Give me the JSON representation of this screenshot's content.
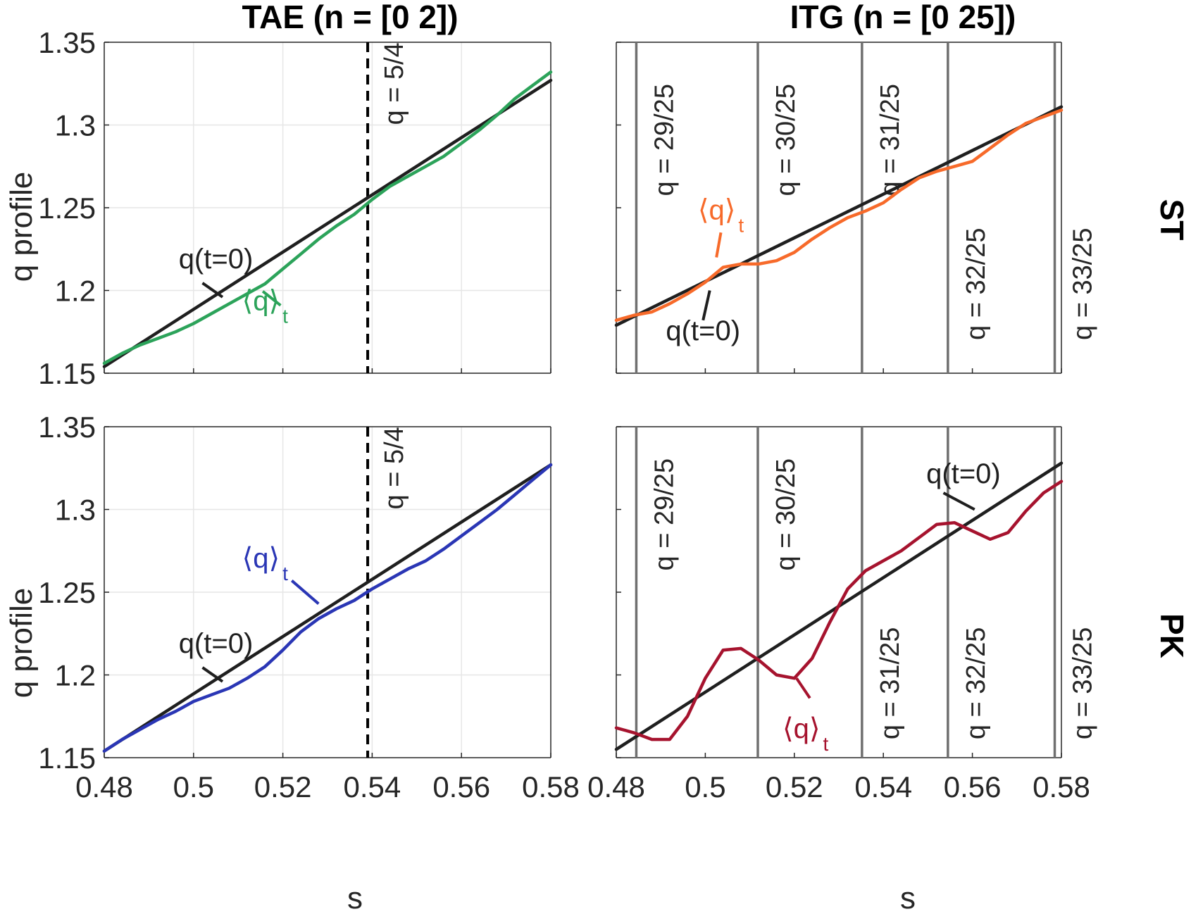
{
  "titles": {
    "left": "TAE (n = [0 2])",
    "right": "ITG (n = [0 25])"
  },
  "row_labels": {
    "top": "ST",
    "bottom": "PK"
  },
  "axis_labels": {
    "x": "s",
    "y": "q profile"
  },
  "x_ticks": [
    "0.48",
    "0.5",
    "0.52",
    "0.54",
    "0.56",
    "0.58"
  ],
  "y_ticks": [
    "1.15",
    "1.2",
    "1.25",
    "1.3",
    "1.35"
  ],
  "annotations": {
    "q0": "q(t=0)",
    "qt": "⟨q⟩",
    "qt_sub": "t"
  },
  "colors": {
    "tae_st": "#2ca35a",
    "tae_pk": "#2a36b5",
    "itg_st": "#f76a2a",
    "itg_pk": "#a6132e",
    "q0": "#1f1f1f",
    "rational": "#707070"
  },
  "chart_data": [
    {
      "id": "tae_st",
      "type": "line",
      "title": "TAE (n = [0 2])",
      "row": "ST",
      "xlabel": "",
      "ylabel": "q profile",
      "xlim": [
        0.48,
        0.58
      ],
      "ylim": [
        1.15,
        1.35
      ],
      "grid": true,
      "series": [
        {
          "name": "q(t=0)",
          "color": "#1f1f1f",
          "x": [
            0.48,
            0.58
          ],
          "y": [
            1.154,
            1.327
          ]
        },
        {
          "name": "⟨q⟩t",
          "color": "#2ca35a",
          "x": [
            0.48,
            0.484,
            0.488,
            0.492,
            0.496,
            0.5,
            0.504,
            0.508,
            0.512,
            0.516,
            0.52,
            0.524,
            0.528,
            0.532,
            0.536,
            0.54,
            0.544,
            0.548,
            0.552,
            0.556,
            0.56,
            0.564,
            0.568,
            0.572,
            0.576,
            0.58
          ],
          "y": [
            1.156,
            1.162,
            1.167,
            1.171,
            1.175,
            1.18,
            1.186,
            1.192,
            1.198,
            1.204,
            1.213,
            1.222,
            1.231,
            1.239,
            1.246,
            1.255,
            1.263,
            1.269,
            1.275,
            1.281,
            1.289,
            1.297,
            1.306,
            1.316,
            1.324,
            1.332
          ]
        }
      ],
      "vlines": [
        {
          "x": 0.539,
          "label": "q = 5/4",
          "style": "dashed"
        }
      ],
      "labels": [
        {
          "series": "q(t=0)",
          "at": [
            0.505,
            1.2134
          ]
        },
        {
          "series": "⟨q⟩t",
          "at": [
            0.516,
            1.188
          ]
        }
      ]
    },
    {
      "id": "itg_st",
      "type": "line",
      "title": "ITG (n = [0 25])",
      "row": "ST",
      "xlabel": "",
      "ylabel": "",
      "xlim": [
        0.48,
        0.58
      ],
      "ylim": [
        1.15,
        1.35
      ],
      "grid": false,
      "series": [
        {
          "name": "q(t=0)",
          "color": "#1f1f1f",
          "x": [
            0.48,
            0.58
          ],
          "y": [
            1.179,
            1.311
          ]
        },
        {
          "name": "⟨q⟩t",
          "color": "#f76a2a",
          "x": [
            0.48,
            0.484,
            0.488,
            0.492,
            0.496,
            0.5,
            0.504,
            0.508,
            0.512,
            0.516,
            0.52,
            0.524,
            0.528,
            0.532,
            0.536,
            0.54,
            0.544,
            0.548,
            0.552,
            0.556,
            0.56,
            0.564,
            0.568,
            0.572,
            0.576,
            0.58
          ],
          "y": [
            1.182,
            1.185,
            1.187,
            1.192,
            1.198,
            1.205,
            1.214,
            1.216,
            1.216,
            1.218,
            1.223,
            1.231,
            1.238,
            1.244,
            1.248,
            1.253,
            1.261,
            1.268,
            1.272,
            1.275,
            1.278,
            1.286,
            1.294,
            1.301,
            1.305,
            1.309
          ]
        }
      ],
      "vlines": [
        {
          "x": 0.4845,
          "label": "q = 29/25",
          "label_y": 1.257
        },
        {
          "x": 0.5118,
          "label": "q = 30/25",
          "label_y": 1.257
        },
        {
          "x": 0.5352,
          "label": "q = 31/25",
          "label_y": 1.257
        },
        {
          "x": 0.5545,
          "label": "q = 32/25",
          "label_y": 1.17
        },
        {
          "x": 0.5785,
          "label": "q = 33/25",
          "label_y": 1.17
        }
      ],
      "labels": [
        {
          "series": "⟨q⟩t",
          "at": [
            0.5035,
            1.243
          ]
        },
        {
          "series": "q(t=0)",
          "at": [
            0.4995,
            1.17
          ]
        }
      ]
    },
    {
      "id": "tae_pk",
      "type": "line",
      "title": "",
      "row": "PK",
      "xlabel": "s",
      "ylabel": "q profile",
      "xlim": [
        0.48,
        0.58
      ],
      "ylim": [
        1.15,
        1.35
      ],
      "grid": true,
      "series": [
        {
          "name": "q(t=0)",
          "color": "#1f1f1f",
          "x": [
            0.48,
            0.58
          ],
          "y": [
            1.154,
            1.327
          ]
        },
        {
          "name": "⟨q⟩t",
          "color": "#2a36b5",
          "x": [
            0.48,
            0.484,
            0.488,
            0.492,
            0.496,
            0.5,
            0.504,
            0.508,
            0.512,
            0.516,
            0.52,
            0.524,
            0.528,
            0.532,
            0.536,
            0.54,
            0.544,
            0.548,
            0.552,
            0.556,
            0.56,
            0.564,
            0.568,
            0.572,
            0.576,
            0.58
          ],
          "y": [
            1.154,
            1.161,
            1.167,
            1.173,
            1.178,
            1.184,
            1.188,
            1.192,
            1.198,
            1.205,
            1.215,
            1.226,
            1.234,
            1.24,
            1.245,
            1.252,
            1.258,
            1.264,
            1.269,
            1.276,
            1.284,
            1.292,
            1.3,
            1.309,
            1.318,
            1.327
          ]
        }
      ],
      "vlines": [
        {
          "x": 0.539,
          "label": "q = 5/4",
          "style": "dashed"
        }
      ],
      "labels": [
        {
          "series": "q(t=0)",
          "at": [
            0.505,
            1.2134
          ]
        },
        {
          "series": "⟨q⟩t",
          "at": [
            0.516,
            1.265
          ]
        }
      ]
    },
    {
      "id": "itg_pk",
      "type": "line",
      "title": "",
      "row": "PK",
      "xlabel": "s",
      "ylabel": "",
      "xlim": [
        0.48,
        0.58
      ],
      "ylim": [
        1.15,
        1.35
      ],
      "grid": false,
      "series": [
        {
          "name": "q(t=0)",
          "color": "#1f1f1f",
          "x": [
            0.48,
            0.58
          ],
          "y": [
            1.155,
            1.328
          ]
        },
        {
          "name": "⟨q⟩t",
          "color": "#a6132e",
          "x": [
            0.48,
            0.484,
            0.488,
            0.492,
            0.496,
            0.5,
            0.504,
            0.508,
            0.512,
            0.516,
            0.52,
            0.524,
            0.528,
            0.532,
            0.536,
            0.54,
            0.544,
            0.548,
            0.552,
            0.556,
            0.56,
            0.564,
            0.568,
            0.572,
            0.576,
            0.58
          ],
          "y": [
            1.168,
            1.165,
            1.161,
            1.161,
            1.175,
            1.198,
            1.215,
            1.216,
            1.209,
            1.2,
            1.198,
            1.21,
            1.232,
            1.252,
            1.263,
            1.269,
            1.275,
            1.283,
            1.291,
            1.292,
            1.287,
            1.282,
            1.286,
            1.299,
            1.31,
            1.317
          ]
        }
      ],
      "vlines": [
        {
          "x": 0.4845,
          "label": "q = 29/25",
          "label_y": 1.263
        },
        {
          "x": 0.5118,
          "label": "q = 30/25",
          "label_y": 1.263
        },
        {
          "x": 0.5352,
          "label": "q = 31/25",
          "label_y": 1.161
        },
        {
          "x": 0.5545,
          "label": "q = 32/25",
          "label_y": 1.161
        },
        {
          "x": 0.5785,
          "label": "q = 33/25",
          "label_y": 1.161
        }
      ],
      "labels": [
        {
          "series": "q(t=0)",
          "at": [
            0.558,
            1.316
          ]
        },
        {
          "series": "⟨q⟩t",
          "at": [
            0.5225,
            1.162
          ]
        }
      ]
    }
  ]
}
